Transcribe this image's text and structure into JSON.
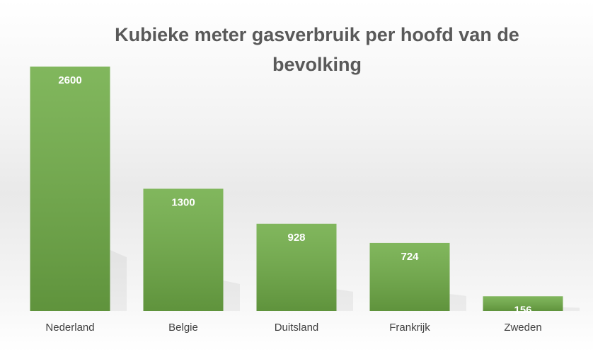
{
  "chart_data": {
    "type": "bar",
    "title": "Kubieke meter gasverbruik per hoofd van de bevolking",
    "categories": [
      "Nederland",
      "Belgie",
      "Duitsland",
      "Frankrijk",
      "Zweden"
    ],
    "values": [
      2600,
      1300,
      928,
      724,
      156
    ],
    "color": "#70ad47"
  }
}
